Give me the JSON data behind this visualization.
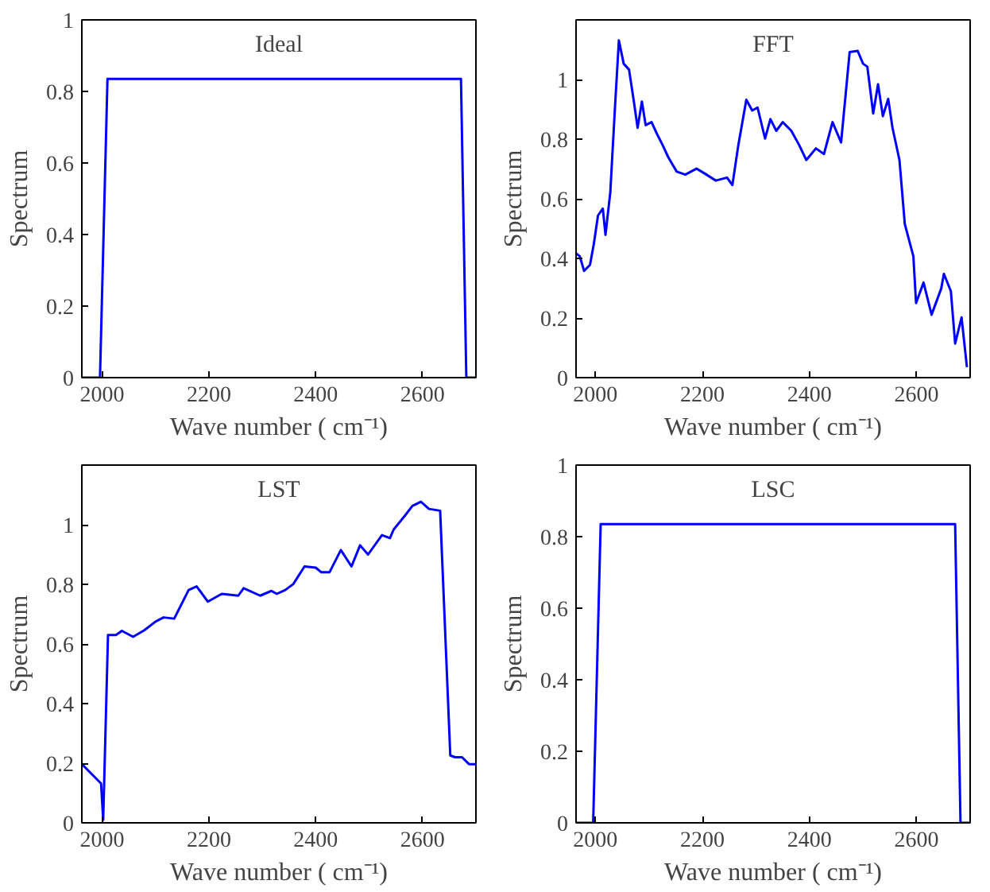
{
  "chart_data": [
    {
      "type": "line",
      "title": "Ideal",
      "xlabel": "Wave number ( cm⁻¹)",
      "ylabel": "Spectrum",
      "color": "#0000ff",
      "x": [
        1962,
        1996,
        2010,
        2672,
        2682,
        2700
      ],
      "values": [
        0,
        0,
        0.835,
        0.835,
        0,
        0
      ],
      "xlim": [
        1962,
        2700
      ],
      "ylim": [
        0,
        1
      ],
      "xticks": [
        2000,
        2200,
        2400,
        2600
      ],
      "yticks": [
        0,
        0.2,
        0.4,
        0.6,
        0.8,
        1
      ],
      "grid": false
    },
    {
      "type": "line",
      "title": "FFT",
      "xlabel": "Wave number ( cm⁻¹)",
      "ylabel": "Spectrum",
      "color": "#0000ff",
      "x": [
        1964,
        1971,
        1979,
        1990,
        1997,
        2005,
        2014,
        2019,
        2028,
        2037,
        2044,
        2053,
        2063,
        2072,
        2079,
        2087,
        2094,
        2105,
        2115,
        2126,
        2136,
        2152,
        2168,
        2189,
        2204,
        2225,
        2246,
        2256,
        2267,
        2282,
        2293,
        2303,
        2317,
        2327,
        2338,
        2350,
        2366,
        2381,
        2394,
        2412,
        2427,
        2443,
        2459,
        2475,
        2490,
        2500,
        2508,
        2519,
        2528,
        2537,
        2547,
        2555,
        2568,
        2578,
        2594,
        2599,
        2613,
        2628,
        2646,
        2651,
        2664,
        2672,
        2684,
        2694
      ],
      "values": [
        0.417,
        0.407,
        0.358,
        0.378,
        0.446,
        0.544,
        0.567,
        0.479,
        0.622,
        0.916,
        1.131,
        1.053,
        1.033,
        0.926,
        0.838,
        0.926,
        0.847,
        0.857,
        0.818,
        0.779,
        0.74,
        0.691,
        0.681,
        0.701,
        0.685,
        0.661,
        0.671,
        0.646,
        0.779,
        0.932,
        0.896,
        0.906,
        0.802,
        0.867,
        0.828,
        0.857,
        0.828,
        0.779,
        0.73,
        0.769,
        0.75,
        0.857,
        0.789,
        1.092,
        1.096,
        1.053,
        1.043,
        0.886,
        0.984,
        0.877,
        0.935,
        0.838,
        0.73,
        0.515,
        0.407,
        0.25,
        0.319,
        0.211,
        0.299,
        0.348,
        0.29,
        0.114,
        0.202,
        0.035
      ],
      "xlim": [
        1964,
        2700
      ],
      "ylim": [
        0,
        1.2
      ],
      "xticks": [
        2000,
        2200,
        2400,
        2600
      ],
      "yticks": [
        0,
        0.2,
        0.4,
        0.6,
        0.8,
        1
      ],
      "grid": false
    },
    {
      "type": "line",
      "title": "LST",
      "xlabel": "Wave number ( cm⁻¹)",
      "ylabel": "Spectrum",
      "color": "#0000ff",
      "x": [
        1962,
        1998,
        2002,
        2011,
        2026,
        2037,
        2058,
        2079,
        2100,
        2115,
        2135,
        2162,
        2177,
        2198,
        2224,
        2255,
        2265,
        2296,
        2317,
        2327,
        2343,
        2358,
        2379,
        2400,
        2410,
        2426,
        2447,
        2467,
        2483,
        2498,
        2524,
        2539,
        2546,
        2566,
        2581,
        2597,
        2612,
        2633,
        2652,
        2661,
        2674,
        2687,
        2700
      ],
      "values": [
        0.197,
        0.132,
        0.01,
        0.63,
        0.63,
        0.644,
        0.624,
        0.646,
        0.675,
        0.689,
        0.685,
        0.781,
        0.793,
        0.742,
        0.768,
        0.762,
        0.787,
        0.762,
        0.778,
        0.768,
        0.781,
        0.801,
        0.86,
        0.856,
        0.841,
        0.841,
        0.915,
        0.86,
        0.931,
        0.9,
        0.965,
        0.955,
        0.984,
        1.028,
        1.063,
        1.077,
        1.053,
        1.047,
        0.226,
        0.22,
        0.22,
        0.197,
        0.197
      ],
      "xlim": [
        1962,
        2700
      ],
      "ylim": [
        0,
        1.2
      ],
      "xticks": [
        2000,
        2200,
        2400,
        2600
      ],
      "yticks": [
        0,
        0.2,
        0.4,
        0.6,
        0.8,
        1
      ],
      "grid": false
    },
    {
      "type": "line",
      "title": "LSC",
      "xlabel": "Wave number ( cm⁻¹)",
      "ylabel": "Spectrum",
      "color": "#0000ff",
      "x": [
        1964,
        1996,
        2010,
        2672,
        2682,
        2700
      ],
      "values": [
        0,
        0,
        0.835,
        0.835,
        0,
        0
      ],
      "xlim": [
        1964,
        2700
      ],
      "ylim": [
        0,
        1
      ],
      "xticks": [
        2000,
        2200,
        2400,
        2600
      ],
      "yticks": [
        0,
        0.2,
        0.4,
        0.6,
        0.8,
        1
      ],
      "grid": false
    }
  ]
}
